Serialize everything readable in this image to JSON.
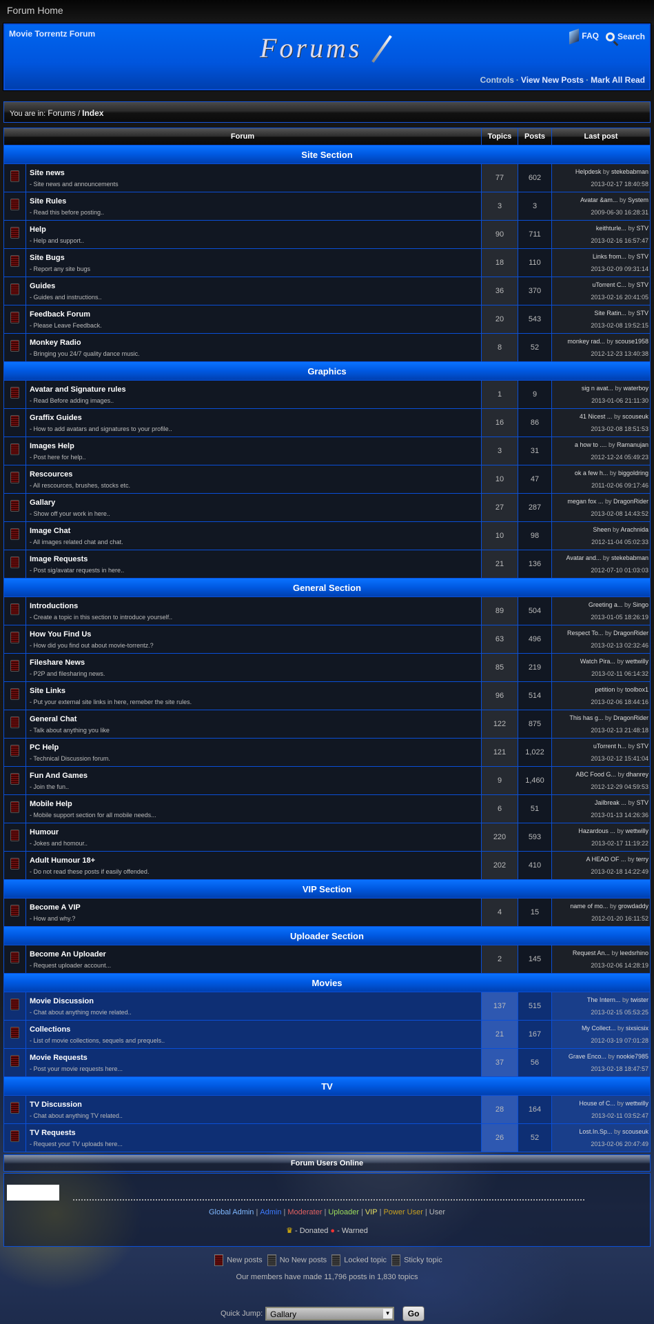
{
  "topbar": {
    "title": "Forum Home"
  },
  "banner": {
    "site_name": "Movie Torrentz Forum",
    "logo_text": "Forums",
    "faq": "FAQ",
    "search": "Search",
    "links": [
      "Controls",
      "View New Posts",
      "Mark All Read"
    ]
  },
  "breadcrumb": {
    "prefix": "You are in:",
    "forums": "Forums",
    "sep": "/",
    "current": "Index"
  },
  "table": {
    "headers": [
      "Forum",
      "Topics",
      "Posts",
      "Last post"
    ]
  },
  "sections": [
    {
      "title": "Site Section",
      "forums": [
        {
          "name": "Site news",
          "desc": "- Site news and announcements",
          "topics": "77",
          "posts": "602",
          "last": "Helpdesk",
          "by": "stekebabman",
          "date": "2013-02-17 18:40:58"
        },
        {
          "name": "Site Rules",
          "desc": "- Read this before posting..",
          "topics": "3",
          "posts": "3",
          "last": "Avatar &am...",
          "by": "System",
          "date": "2009-06-30 16:28:31"
        },
        {
          "name": "Help",
          "desc": "- Help and support..",
          "topics": "90",
          "posts": "711",
          "last": "keithturle...",
          "by": "STV",
          "date": "2013-02-16 16:57:47"
        },
        {
          "name": "Site Bugs",
          "desc": "- Report any site bugs",
          "topics": "18",
          "posts": "110",
          "last": "Links from...",
          "by": "STV",
          "date": "2013-02-09 09:31:14"
        },
        {
          "name": "Guides",
          "desc": "- Guides and instructions..",
          "topics": "36",
          "posts": "370",
          "last": "uTorrent C...",
          "by": "STV",
          "date": "2013-02-16 20:41:05"
        },
        {
          "name": "Feedback Forum",
          "desc": "- Please Leave Feedback.",
          "topics": "20",
          "posts": "543",
          "last": "Site Ratin...",
          "by": "STV",
          "date": "2013-02-08 19:52:15"
        },
        {
          "name": "Monkey Radio",
          "desc": "- Bringing you 24/7 quality dance music.",
          "topics": "8",
          "posts": "52",
          "last": "monkey rad...",
          "by": "scouse1958",
          "date": "2012-12-23 13:40:38"
        }
      ]
    },
    {
      "title": "Graphics",
      "forums": [
        {
          "name": "Avatar and Signature rules",
          "desc": "- Read Before adding images..",
          "topics": "1",
          "posts": "9",
          "last": "sig n avat...",
          "by": "waterboy",
          "date": "2013-01-06 21:11:30"
        },
        {
          "name": "Graffix Guides",
          "desc": "- How to add avatars and signatures to your profile..",
          "topics": "16",
          "posts": "86",
          "last": "41 Nicest ...",
          "by": "scouseuk",
          "date": "2013-02-08 18:51:53"
        },
        {
          "name": "Images Help",
          "desc": "- Post here for help..",
          "topics": "3",
          "posts": "31",
          "last": "a how to ....",
          "by": "Ramanujan",
          "date": "2012-12-24 05:49:23"
        },
        {
          "name": "Rescources",
          "desc": "- All rescources, brushes, stocks etc.",
          "topics": "10",
          "posts": "47",
          "last": "ok a few h...",
          "by": "biggoldring",
          "date": "2011-02-06 09:17:46"
        },
        {
          "name": "Gallary",
          "desc": "- Show off your work in here..",
          "topics": "27",
          "posts": "287",
          "last": "megan fox ...",
          "by": "DragonRider",
          "date": "2013-02-08 14:43:52"
        },
        {
          "name": "Image Chat",
          "desc": "- All images related chat and chat.",
          "topics": "10",
          "posts": "98",
          "last": "Sheen",
          "by": "Arachnida",
          "date": "2012-11-04 05:02:33"
        },
        {
          "name": "Image Requests",
          "desc": "- Post sig/avatar requests in here..",
          "topics": "21",
          "posts": "136",
          "last": "Avatar and...",
          "by": "stekebabman",
          "date": "2012-07-10 01:03:03"
        }
      ]
    },
    {
      "title": "General Section",
      "forums": [
        {
          "name": "Introductions",
          "desc": "- Create a topic in this section to introduce yourself..",
          "topics": "89",
          "posts": "504",
          "last": "Greeting a...",
          "by": "Singo",
          "date": "2013-01-05 18:26:19"
        },
        {
          "name": "How You Find Us",
          "desc": "- How did you find out about movie-torrentz.?",
          "topics": "63",
          "posts": "496",
          "last": "Respect To...",
          "by": "DragonRider",
          "date": "2013-02-13 02:32:46"
        },
        {
          "name": "Fileshare News",
          "desc": "- P2P and filesharing news.",
          "topics": "85",
          "posts": "219",
          "last": "Watch Pira...",
          "by": "wettwilly",
          "date": "2013-02-11 06:14:32"
        },
        {
          "name": "Site Links",
          "desc": "- Put your external site links in here, remeber the site rules.",
          "topics": "96",
          "posts": "514",
          "last": "petition",
          "by": "toolbox1",
          "date": "2013-02-06 18:44:16"
        },
        {
          "name": "General Chat",
          "desc": "- Talk about anything you like",
          "topics": "122",
          "posts": "875",
          "last": "This has g...",
          "by": "DragonRider",
          "date": "2013-02-13 21:48:18"
        },
        {
          "name": "PC Help",
          "desc": "- Technical Discussion forum.",
          "topics": "121",
          "posts": "1,022",
          "last": "uTorrent h...",
          "by": "STV",
          "date": "2013-02-12 15:41:04"
        },
        {
          "name": "Fun And Games",
          "desc": "- Join the fun..",
          "topics": "9",
          "posts": "1,460",
          "last": "ABC Food G...",
          "by": "dhanrey",
          "date": "2012-12-29 04:59:53"
        },
        {
          "name": "Mobile Help",
          "desc": "- Mobile support section for all mobile needs...",
          "topics": "6",
          "posts": "51",
          "last": "Jailbreak ...",
          "by": "STV",
          "date": "2013-01-13 14:26:36"
        },
        {
          "name": "Humour",
          "desc": "- Jokes and homour..",
          "topics": "220",
          "posts": "593",
          "last": "Hazardous ...",
          "by": "wettwilly",
          "date": "2013-02-17 11:19:22"
        },
        {
          "name": "Adult Humour 18+",
          "desc": "- Do not read these posts if easily offended.",
          "topics": "202",
          "posts": "410",
          "last": "A HEAD OF ...",
          "by": "terry",
          "date": "2013-02-18 14:22:49"
        }
      ]
    },
    {
      "title": "VIP Section",
      "forums": [
        {
          "name": "Become A VIP",
          "desc": "- How and why.?",
          "topics": "4",
          "posts": "15",
          "last": "name of mo...",
          "by": "growdaddy",
          "date": "2012-01-20 16:11:52"
        }
      ]
    },
    {
      "title": "Uploader Section",
      "forums": [
        {
          "name": "Become An Uploader",
          "desc": "- Request uploader account...",
          "topics": "2",
          "posts": "145",
          "last": "Request An...",
          "by": "leedsrhino",
          "date": "2013-02-06 14:28:19"
        }
      ]
    },
    {
      "title": "Movies",
      "glass": true,
      "forums": [
        {
          "name": "Movie Discussion",
          "desc": "- Chat about anything movie related..",
          "topics": "137",
          "posts": "515",
          "last": "The Intern...",
          "by": "twister",
          "date": "2013-02-15 05:53:25"
        },
        {
          "name": "Collections",
          "desc": "- List of movie collections, sequels and prequels..",
          "topics": "21",
          "posts": "167",
          "last": "My Collect...",
          "by": "sixsicsix",
          "date": "2012-03-19 07:01:28"
        },
        {
          "name": "Movie Requests",
          "desc": "- Post your movie requests here...",
          "topics": "37",
          "posts": "56",
          "last": "Grave Enco...",
          "by": "nookie7985",
          "date": "2013-02-18 18:47:57"
        }
      ]
    },
    {
      "title": "TV",
      "glass": true,
      "forums": [
        {
          "name": "TV Discussion",
          "desc": "- Chat about anything TV related..",
          "topics": "28",
          "posts": "164",
          "last": "House of C...",
          "by": "wettwilly",
          "date": "2013-02-11 03:52:47"
        },
        {
          "name": "TV Requests",
          "desc": "- Request your TV uploads here...",
          "topics": "26",
          "posts": "52",
          "last": "Lost.In.Sp...",
          "by": "scouseuk",
          "date": "2013-02-06 20:47:49"
        }
      ]
    }
  ],
  "by_word": "by",
  "online": {
    "title": "Forum Users Online",
    "roles": [
      {
        "label": "Global Admin",
        "color": "#7fb8ff"
      },
      {
        "label": "Admin",
        "color": "#3d7bff"
      },
      {
        "label": "Moderater",
        "color": "#e06060"
      },
      {
        "label": "Uploader",
        "color": "#9ddc5a"
      },
      {
        "label": "VIP",
        "color": "#e8e060"
      },
      {
        "label": "Power User",
        "color": "#c8a020"
      },
      {
        "label": "User",
        "color": "#bbbbbb"
      }
    ],
    "donated": "- Donated",
    "warned": "- Warned"
  },
  "legend": {
    "new": "New posts",
    "no_new": "No New posts",
    "locked": "Locked topic",
    "sticky": "Sticky topic"
  },
  "stats": "Our members have made 11,796 posts in 1,830 topics",
  "quickjump": {
    "label": "Quick Jump:",
    "selected": "Gallary",
    "go": "Go"
  }
}
